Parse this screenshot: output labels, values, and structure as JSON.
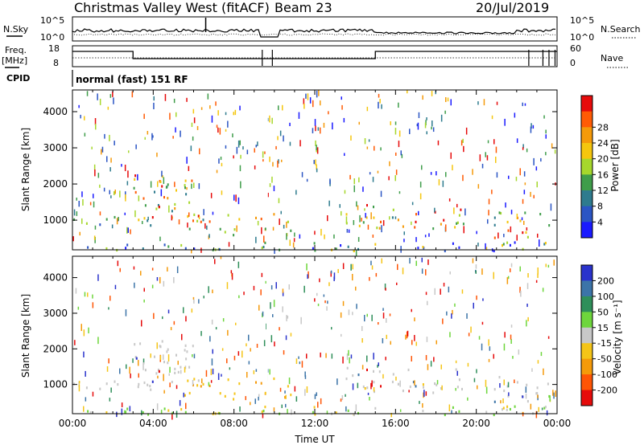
{
  "header": {
    "title": "Christmas Valley West (fitACF)",
    "beam": "Beam 23",
    "date": "20/Jul/2019"
  },
  "noise_panel": {
    "left_label": "N.Sky",
    "right_label": "N.Search",
    "left_ticks": [
      "10^5",
      "10^0"
    ],
    "right_ticks": [
      "10^5",
      "10^0"
    ]
  },
  "freq_panel": {
    "left_label_1": "Freq.",
    "left_label_2": "[MHz]",
    "right_label": "Nave",
    "left_ticks": [
      "18",
      "8"
    ],
    "right_ticks": [
      "60",
      "0"
    ]
  },
  "cpid": {
    "label": "CPID",
    "text": "normal (fast) 151 RF"
  },
  "chart_data": [
    {
      "type": "heatmap",
      "title": "",
      "quantity": "Power",
      "xlabel": "",
      "ylabel": "Slant Range [km]",
      "xlim": [
        "00:00",
        "24:00"
      ],
      "ylim": [
        180,
        4600
      ],
      "y_ticks": [
        "1000",
        "2000",
        "3000",
        "4000"
      ],
      "colorbar_label": "Power [dB]",
      "colorbar_ticks": [
        "4",
        "8",
        "12",
        "16",
        "20",
        "24",
        "28"
      ],
      "colorbar_colors": [
        "#1a1aff",
        "#2b55c4",
        "#2e7b8e",
        "#3f9d4a",
        "#a6d72c",
        "#f5c60e",
        "#f59a0a",
        "#ff5b05",
        "#e70b0b"
      ],
      "regions": [
        {
          "t": [
            0.0,
            2.4
          ],
          "r": [
            800,
            1300
          ],
          "level": "mid"
        },
        {
          "t": [
            2.9,
            6.0
          ],
          "r": [
            800,
            2300
          ],
          "level": "high"
        },
        {
          "t": [
            5.5,
            10.8
          ],
          "r": [
            600,
            1200
          ],
          "level": "high"
        },
        {
          "t": [
            13.5,
            19.4
          ],
          "r": [
            800,
            1500
          ],
          "level": "high"
        },
        {
          "t": [
            20.8,
            23.8
          ],
          "r": [
            500,
            1300
          ],
          "level": "high"
        },
        {
          "t": [
            0.0,
            24.0
          ],
          "r": [
            180,
            420
          ],
          "level": "mid"
        }
      ]
    },
    {
      "type": "heatmap",
      "title": "",
      "quantity": "Velocity",
      "xlabel": "Time UT",
      "ylabel": "Slant Range [km]",
      "xlim": [
        "00:00",
        "24:00"
      ],
      "ylim": [
        180,
        4600
      ],
      "x_ticks": [
        "00:00",
        "04:00",
        "08:00",
        "12:00",
        "16:00",
        "20:00",
        "00:00"
      ],
      "y_ticks": [
        "1000",
        "2000",
        "3000",
        "4000"
      ],
      "colorbar_label": "Velocity [m s⁻¹]",
      "colorbar_ticks": [
        "200",
        "100",
        "50",
        "15",
        "-15",
        "-50",
        "-100",
        "-200"
      ],
      "colorbar_colors": [
        "#2a33cc",
        "#3c74a8",
        "#2f8f5a",
        "#6ed63c",
        "#c8c8c8",
        "#f5c518",
        "#f59a0a",
        "#ff5505",
        "#e60b0b"
      ],
      "regions": [
        {
          "t": [
            0.0,
            2.4
          ],
          "r": [
            800,
            1300
          ],
          "level": "ground"
        },
        {
          "t": [
            2.9,
            6.0
          ],
          "r": [
            800,
            2300
          ],
          "level": "ground"
        },
        {
          "t": [
            5.5,
            10.8
          ],
          "r": [
            600,
            1200
          ],
          "level": "neg"
        },
        {
          "t": [
            13.5,
            19.4
          ],
          "r": [
            800,
            1500
          ],
          "level": "ground"
        },
        {
          "t": [
            20.8,
            23.8
          ],
          "r": [
            500,
            1300
          ],
          "level": "ground"
        },
        {
          "t": [
            0.0,
            24.0
          ],
          "r": [
            180,
            420
          ],
          "level": "pos"
        }
      ]
    }
  ]
}
